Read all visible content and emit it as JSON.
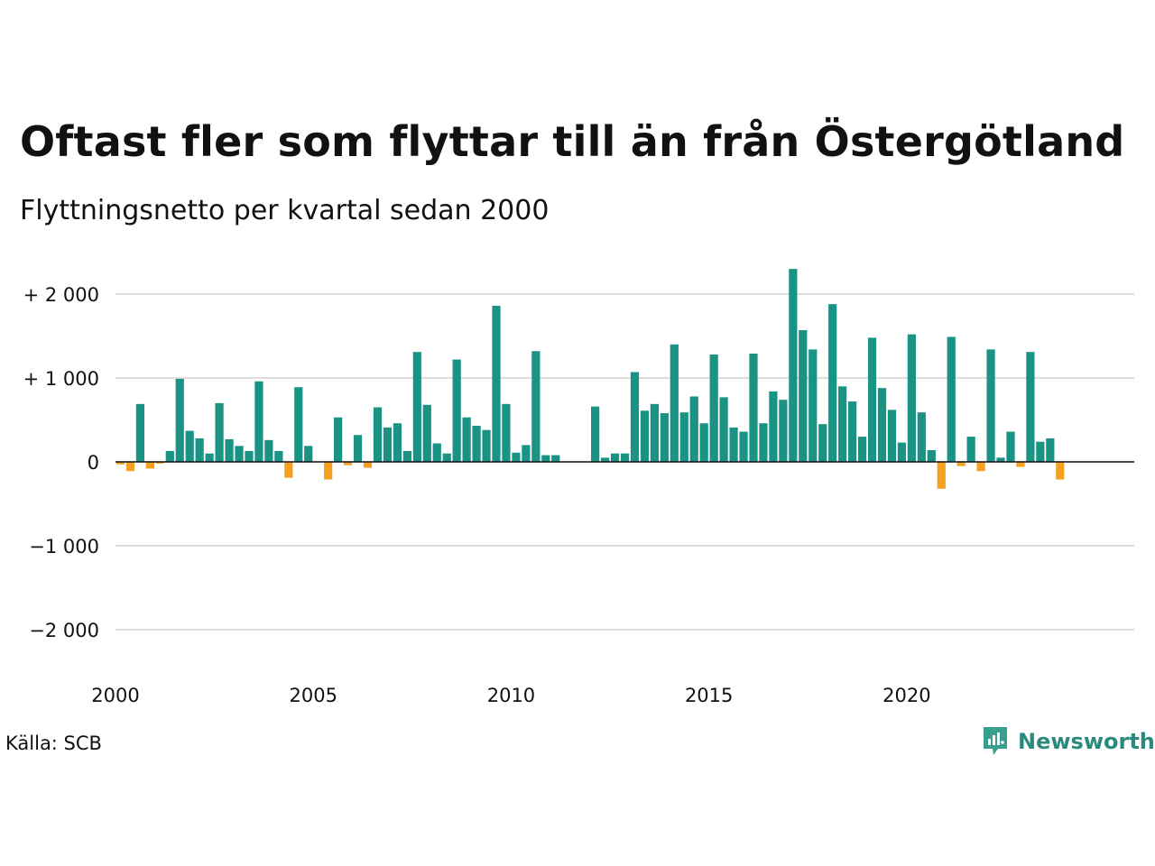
{
  "title": "Oftast fler som flyttar till än från Östergötland",
  "subtitle": "Flyttningsnetto per kvartal sedan 2000",
  "source": "Källa: SCB",
  "brand": {
    "name": "Newsworthy",
    "icon": "newsworthy-logo-icon"
  },
  "colors": {
    "positive": "#1a9384",
    "negative": "#f5a01f",
    "grid": "#dddddd",
    "axis": "#111111"
  },
  "chart_data": {
    "type": "bar",
    "title": "Oftast fler som flyttar till än från Östergötland",
    "subtitle": "Flyttningsnetto per kvartal sedan 2000",
    "xlabel": "",
    "ylabel": "",
    "ylim": [
      -2300,
      2300
    ],
    "grid": true,
    "y_ticks": [
      {
        "value": 2000,
        "label": "+ 2 000"
      },
      {
        "value": 1000,
        "label": "+ 1 000"
      },
      {
        "value": 0,
        "label": "0"
      },
      {
        "value": -1000,
        "label": "−1 000"
      },
      {
        "value": -2000,
        "label": "−2 000"
      }
    ],
    "x_ticks": [
      {
        "year": 2000,
        "label": "2000"
      },
      {
        "year": 2005,
        "label": "2005"
      },
      {
        "year": 2010,
        "label": "2010"
      },
      {
        "year": 2015,
        "label": "2015"
      },
      {
        "year": 2020,
        "label": "2020"
      }
    ],
    "start": "2000 Q1",
    "categories": [
      "2000 Q1",
      "2000 Q2",
      "2000 Q3",
      "2000 Q4",
      "2001 Q1",
      "2001 Q2",
      "2001 Q3",
      "2001 Q4",
      "2002 Q1",
      "2002 Q2",
      "2002 Q3",
      "2002 Q4",
      "2003 Q1",
      "2003 Q2",
      "2003 Q3",
      "2003 Q4",
      "2004 Q1",
      "2004 Q2",
      "2004 Q3",
      "2004 Q4",
      "2005 Q1",
      "2005 Q2",
      "2005 Q3",
      "2005 Q4",
      "2006 Q1",
      "2006 Q2",
      "2006 Q3",
      "2006 Q4",
      "2007 Q1",
      "2007 Q2",
      "2007 Q3",
      "2007 Q4",
      "2008 Q1",
      "2008 Q2",
      "2008 Q3",
      "2008 Q4",
      "2009 Q1",
      "2009 Q2",
      "2009 Q3",
      "2009 Q4",
      "2010 Q1",
      "2010 Q2",
      "2010 Q3",
      "2010 Q4",
      "2011 Q1",
      "2011 Q2",
      "2011 Q3",
      "2011 Q4",
      "2012 Q1",
      "2012 Q2",
      "2012 Q3",
      "2012 Q4",
      "2013 Q1",
      "2013 Q2",
      "2013 Q3",
      "2013 Q4",
      "2014 Q1",
      "2014 Q2",
      "2014 Q3",
      "2014 Q4",
      "2015 Q1",
      "2015 Q2",
      "2015 Q3",
      "2015 Q4",
      "2016 Q1",
      "2016 Q2",
      "2016 Q3",
      "2016 Q4",
      "2017 Q1",
      "2017 Q2",
      "2017 Q3",
      "2017 Q4",
      "2018 Q1",
      "2018 Q2",
      "2018 Q3",
      "2018 Q4",
      "2019 Q1",
      "2019 Q2",
      "2019 Q3",
      "2019 Q4",
      "2020 Q1",
      "2020 Q2",
      "2020 Q3",
      "2020 Q4",
      "2021 Q1",
      "2021 Q2",
      "2021 Q3",
      "2021 Q4",
      "2022 Q1",
      "2022 Q2",
      "2022 Q3",
      "2022 Q4",
      "2023 Q1",
      "2023 Q2",
      "2023 Q3",
      "2023 Q4",
      "2024 Q1",
      "2024 Q2",
      "2024 Q3",
      "2024 Q4",
      "2025 Q1",
      "2025 Q2",
      "2025 Q3"
    ],
    "values": [
      -30,
      -110,
      690,
      -80,
      -20,
      130,
      990,
      370,
      280,
      100,
      700,
      270,
      190,
      130,
      960,
      260,
      130,
      -190,
      890,
      190,
      0,
      -210,
      530,
      -40,
      320,
      -70,
      650,
      410,
      460,
      130,
      1310,
      680,
      220,
      100,
      1220,
      530,
      430,
      380,
      1860,
      690,
      110,
      200,
      1320,
      80,
      80,
      0,
      0,
      0,
      660,
      50,
      100,
      100,
      1070,
      610,
      690,
      580,
      1400,
      590,
      780,
      460,
      1280,
      770,
      410,
      360,
      1290,
      460,
      840,
      740,
      2300,
      1570,
      1340,
      450,
      1880,
      900,
      720,
      300,
      1480,
      880,
      620,
      230,
      1520,
      590,
      140,
      -320,
      1490,
      -50,
      300,
      -110,
      1340,
      50,
      360,
      -60,
      1310,
      240,
      280,
      -210,
      0,
      0,
      0,
      0,
      0,
      0,
      0
    ]
  }
}
